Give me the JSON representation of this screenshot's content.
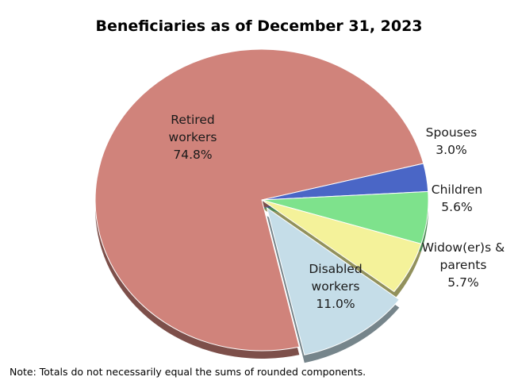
{
  "chart_data": {
    "type": "pie",
    "title": "Beneficiaries as of December 31, 2023",
    "note": "Note: Totals do not necessarily equal the sums of rounded components.",
    "slices": [
      {
        "name": "Retired workers",
        "value": 74.8,
        "label_lines": [
          "Retired",
          "workers",
          "74.8%"
        ],
        "color": "#d0837b",
        "exploded": false
      },
      {
        "name": "Spouses",
        "value": 3.0,
        "label_lines": [
          "Spouses",
          "3.0%"
        ],
        "color": "#4a66c6",
        "exploded": false
      },
      {
        "name": "Children",
        "value": 5.6,
        "label_lines": [
          "Children",
          "5.6%"
        ],
        "color": "#7ee28c",
        "exploded": false
      },
      {
        "name": "Widow(er)s & parents",
        "value": 5.7,
        "label_lines": [
          "Widow(er)s &",
          "parents",
          "5.7%"
        ],
        "color": "#f4f29a",
        "exploded": false
      },
      {
        "name": "Disabled workers",
        "value": 11.0,
        "label_lines": [
          "Disabled",
          "workers",
          "11.0%"
        ],
        "color": "#c5dde8",
        "exploded": true
      }
    ]
  }
}
